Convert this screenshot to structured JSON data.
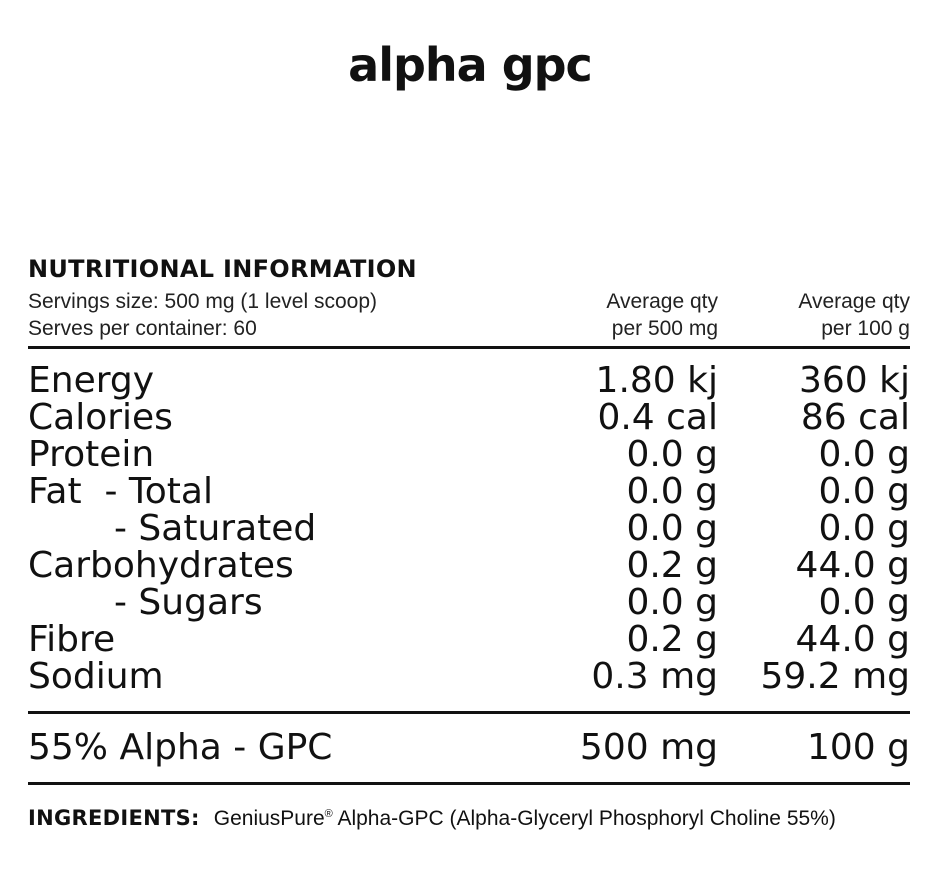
{
  "brand": {
    "title": "alpha gpc"
  },
  "panel": {
    "heading": "NUTRITIONAL INFORMATION",
    "serving_size": "Servings size: 500 mg (1 level scoop)",
    "serves_per_container": "Serves per container: 60",
    "col1_line1": "Average qty",
    "col1_line2": "per 500 mg",
    "col2_line1": "Average qty",
    "col2_line2": "per 100 g",
    "rows": [
      {
        "name": "Energy",
        "per_serving": "1.80 kj",
        "per_100g": "360 kj"
      },
      {
        "name": "Calories",
        "per_serving": "0.4 cal",
        "per_100g": "86 cal"
      },
      {
        "name": "Protein",
        "per_serving": "0.0 g",
        "per_100g": "0.0 g"
      },
      {
        "name": "Fat  - Total",
        "per_serving": "0.0 g",
        "per_100g": "0.0 g"
      },
      {
        "name": "- Saturated",
        "per_serving": "0.0 g",
        "per_100g": "0.0 g"
      },
      {
        "name": "Carbohydrates",
        "per_serving": "0.2 g",
        "per_100g": "44.0 g"
      },
      {
        "name": "- Sugars",
        "per_serving": "0.0 g",
        "per_100g": "0.0 g"
      },
      {
        "name": "Fibre",
        "per_serving": "0.2 g",
        "per_100g": "44.0 g"
      },
      {
        "name": "Sodium",
        "per_serving": "0.3 mg",
        "per_100g": "59.2 mg"
      }
    ],
    "active": {
      "name": "55% Alpha - GPC",
      "per_serving": "500 mg",
      "per_100g": "100 g"
    },
    "ingredients_label": "INGREDIENTS:",
    "ingredients_brand": "GeniusPure",
    "ingredients_reg": "®",
    "ingredients_text": " Alpha-GPC (Alpha-Glyceryl Phosphoryl Choline 55%)"
  }
}
